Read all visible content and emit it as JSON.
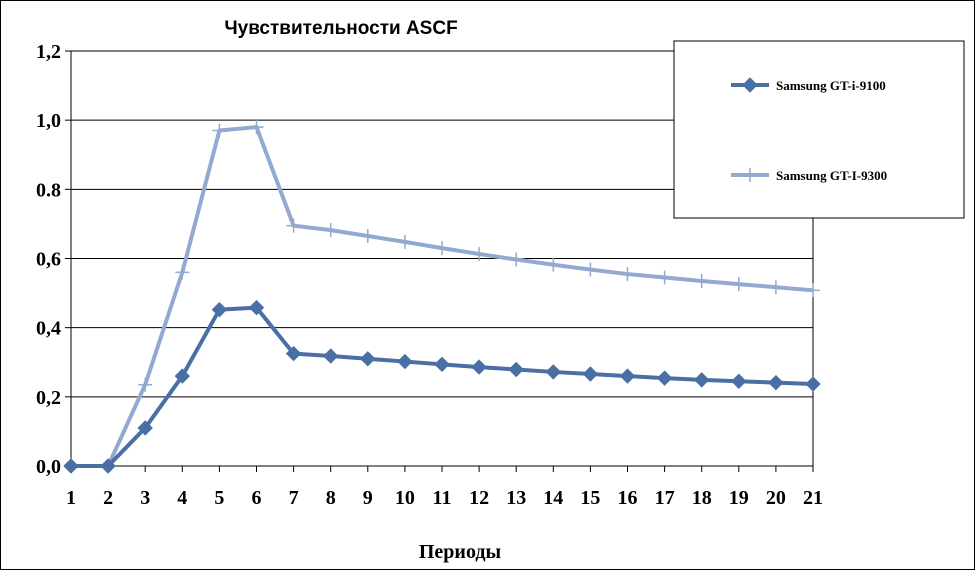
{
  "chart_data": {
    "type": "line",
    "title": "Чувствительности  ASCF",
    "xlabel": "Периоды",
    "ylabel": "",
    "categories": [
      "1",
      "2",
      "3",
      "4",
      "5",
      "6",
      "7",
      "8",
      "9",
      "10",
      "11",
      "12",
      "13",
      "14",
      "15",
      "16",
      "17",
      "18",
      "19",
      "20",
      "21"
    ],
    "y_tick_labels": [
      "0,0",
      "0,2",
      "0,4",
      "0,6",
      "0.8",
      "1,0",
      "1,2"
    ],
    "ylim": [
      0,
      1.2
    ],
    "grid": true,
    "legend_position": "top-right",
    "series": [
      {
        "name": "Samsung GT-i-9100",
        "color": "#4a6fa5",
        "marker": "diamond",
        "values": [
          0.0,
          0.0,
          0.11,
          0.26,
          0.452,
          0.458,
          0.325,
          0.318,
          0.31,
          0.302,
          0.294,
          0.286,
          0.279,
          0.272,
          0.266,
          0.26,
          0.254,
          0.249,
          0.245,
          0.241,
          0.237
        ]
      },
      {
        "name": "Samsung GT-I-9300",
        "color": "#93a9d1",
        "marker": "plus",
        "values": [
          0.0,
          0.0,
          0.235,
          0.56,
          0.97,
          0.98,
          0.695,
          0.682,
          0.665,
          0.648,
          0.63,
          0.613,
          0.597,
          0.582,
          0.568,
          0.555,
          0.545,
          0.535,
          0.526,
          0.517,
          0.508
        ]
      }
    ]
  }
}
